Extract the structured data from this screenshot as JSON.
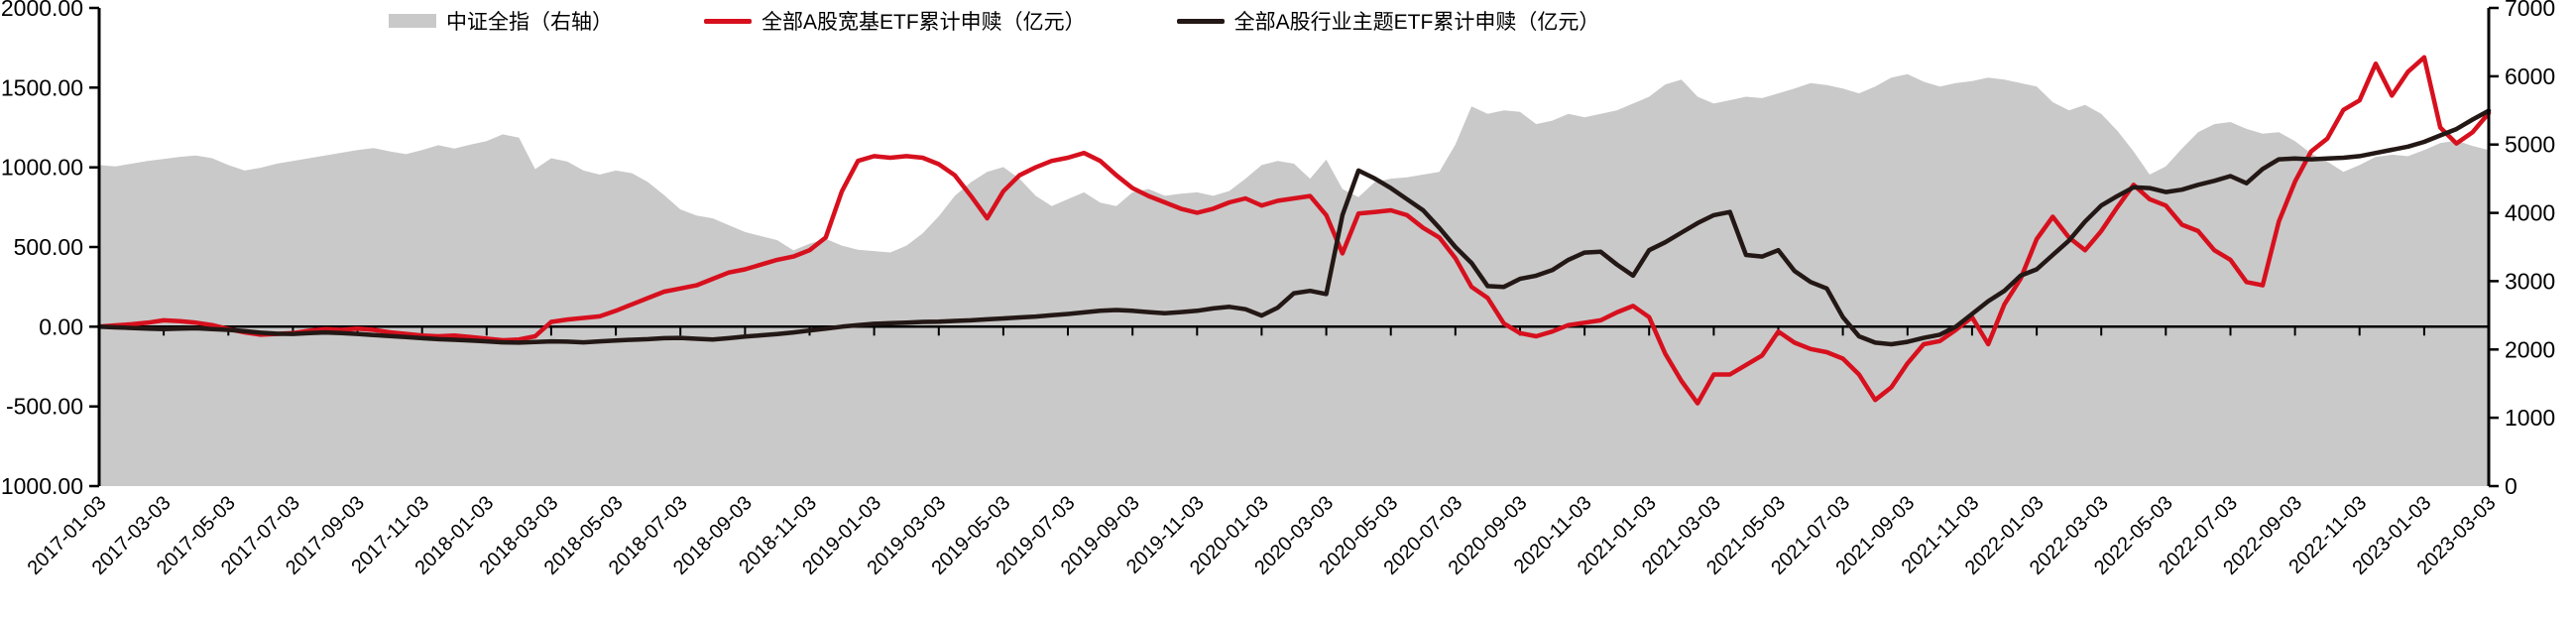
{
  "chart_data": {
    "type": "line+area",
    "title": "",
    "legend_position": "top-center",
    "grid": "off",
    "sampling_note": "semi-monthly points, 2017-01 to 2023-03 (149 points per series)",
    "colors": {
      "area_fill": "#c9c9c9",
      "broad_etf_line": "#d7101e",
      "industry_etf_line": "#231815",
      "axis": "#000000"
    },
    "axes": {
      "left": {
        "min": -1000,
        "max": 2000,
        "step": 500,
        "tick_labels": [
          "2000.00",
          "1500.00",
          "1000.00",
          "500.00",
          "0.00",
          "-500.00",
          "-1000.00"
        ],
        "tick_values": [
          2000,
          1500,
          1000,
          500,
          0,
          -500,
          -1000
        ]
      },
      "right": {
        "min": 0,
        "max": 7000,
        "step": 1000,
        "tick_labels": [
          "7000",
          "6000",
          "5000",
          "4000",
          "3000",
          "2000",
          "1000",
          "0"
        ],
        "tick_values": [
          7000,
          6000,
          5000,
          4000,
          3000,
          2000,
          1000,
          0
        ]
      }
    },
    "x_tick_labels": [
      "2017-01-03",
      "2017-03-03",
      "2017-05-03",
      "2017-07-03",
      "2017-09-03",
      "2017-11-03",
      "2018-01-03",
      "2018-03-03",
      "2018-05-03",
      "2018-07-03",
      "2018-09-03",
      "2018-11-03",
      "2019-01-03",
      "2019-03-03",
      "2019-05-03",
      "2019-07-03",
      "2019-09-03",
      "2019-11-03",
      "2020-01-03",
      "2020-03-03",
      "2020-05-03",
      "2020-07-03",
      "2020-09-03",
      "2020-11-03",
      "2021-01-03",
      "2021-03-03",
      "2021-05-03",
      "2021-07-03",
      "2021-09-03",
      "2021-11-03",
      "2022-01-03",
      "2022-03-03",
      "2022-05-03",
      "2022-07-03",
      "2022-09-03",
      "2022-11-03",
      "2023-01-03",
      "2023-03-03"
    ],
    "series": [
      {
        "name": "中证全指（右轴）",
        "type": "area",
        "axis": "right",
        "values": [
          4700,
          4680,
          4720,
          4760,
          4790,
          4820,
          4840,
          4800,
          4700,
          4620,
          4660,
          4720,
          4760,
          4800,
          4840,
          4880,
          4920,
          4950,
          4900,
          4860,
          4920,
          4990,
          4940,
          5000,
          5050,
          5150,
          5100,
          4640,
          4800,
          4750,
          4620,
          4560,
          4620,
          4580,
          4450,
          4260,
          4050,
          3960,
          3920,
          3820,
          3720,
          3660,
          3600,
          3450,
          3550,
          3620,
          3520,
          3460,
          3440,
          3420,
          3520,
          3700,
          3950,
          4250,
          4450,
          4600,
          4670,
          4500,
          4250,
          4100,
          4200,
          4300,
          4150,
          4100,
          4300,
          4350,
          4250,
          4280,
          4300,
          4250,
          4320,
          4500,
          4700,
          4760,
          4720,
          4500,
          4780,
          4350,
          4230,
          4450,
          4500,
          4520,
          4560,
          4600,
          5000,
          5560,
          5450,
          5500,
          5480,
          5300,
          5350,
          5450,
          5400,
          5450,
          5500,
          5600,
          5700,
          5880,
          5950,
          5700,
          5600,
          5650,
          5700,
          5680,
          5750,
          5820,
          5900,
          5870,
          5820,
          5750,
          5850,
          5980,
          6030,
          5920,
          5850,
          5900,
          5930,
          5980,
          5950,
          5900,
          5850,
          5620,
          5500,
          5580,
          5450,
          5200,
          4900,
          4560,
          4680,
          4940,
          5180,
          5300,
          5330,
          5230,
          5160,
          5180,
          5050,
          4870,
          4750,
          4600,
          4700,
          4820,
          4850,
          4830,
          4920,
          5020,
          5060,
          4980,
          4920
        ]
      },
      {
        "name": "全部A股宽基ETF累计申赎（亿元）",
        "type": "line",
        "axis": "left",
        "values": [
          0,
          8,
          15,
          25,
          40,
          35,
          25,
          10,
          -15,
          -35,
          -50,
          -45,
          -40,
          -25,
          -15,
          -20,
          -12,
          -20,
          -35,
          -45,
          -55,
          -60,
          -55,
          -65,
          -75,
          -85,
          -80,
          -60,
          30,
          45,
          55,
          65,
          100,
          140,
          180,
          220,
          240,
          260,
          300,
          340,
          360,
          390,
          420,
          440,
          480,
          560,
          850,
          1040,
          1070,
          1060,
          1070,
          1060,
          1020,
          950,
          820,
          680,
          850,
          950,
          1000,
          1040,
          1060,
          1090,
          1040,
          950,
          870,
          820,
          780,
          740,
          715,
          740,
          780,
          805,
          760,
          790,
          805,
          820,
          700,
          460,
          710,
          720,
          730,
          700,
          620,
          560,
          430,
          250,
          180,
          20,
          -40,
          -60,
          -30,
          10,
          25,
          40,
          90,
          130,
          60,
          -170,
          -340,
          -480,
          -300,
          -300,
          -240,
          -180,
          -30,
          -100,
          -140,
          -160,
          -200,
          -300,
          -460,
          -380,
          -230,
          -110,
          -90,
          -20,
          60,
          -110,
          140,
          300,
          550,
          690,
          560,
          480,
          600,
          750,
          890,
          800,
          760,
          640,
          600,
          480,
          420,
          280,
          260,
          660,
          910,
          1100,
          1180,
          1360,
          1420,
          1650,
          1450,
          1600,
          1690,
          1250,
          1150,
          1220,
          1340
        ]
      },
      {
        "name": "全部A股行业主题ETF累计申赎（亿元）",
        "type": "line",
        "axis": "left",
        "values": [
          0,
          -4,
          -8,
          -12,
          -15,
          -12,
          -10,
          -15,
          -20,
          -28,
          -38,
          -44,
          -45,
          -40,
          -36,
          -40,
          -45,
          -52,
          -58,
          -65,
          -72,
          -78,
          -82,
          -86,
          -92,
          -98,
          -100,
          -96,
          -92,
          -94,
          -98,
          -92,
          -86,
          -82,
          -78,
          -72,
          -70,
          -76,
          -80,
          -72,
          -62,
          -54,
          -46,
          -36,
          -24,
          -12,
          0,
          10,
          18,
          22,
          26,
          30,
          32,
          36,
          40,
          46,
          52,
          58,
          64,
          72,
          80,
          90,
          100,
          105,
          100,
          92,
          85,
          92,
          100,
          115,
          125,
          110,
          70,
          120,
          210,
          225,
          205,
          700,
          980,
          930,
          870,
          800,
          730,
          620,
          500,
          400,
          255,
          250,
          300,
          320,
          355,
          420,
          465,
          470,
          390,
          320,
          480,
          530,
          590,
          650,
          700,
          720,
          450,
          440,
          480,
          350,
          280,
          240,
          60,
          -60,
          -100,
          -110,
          -95,
          -70,
          -50,
          0,
          80,
          160,
          225,
          320,
          360,
          450,
          540,
          660,
          760,
          820,
          875,
          870,
          845,
          860,
          890,
          915,
          945,
          900,
          990,
          1050,
          1055,
          1050,
          1055,
          1060,
          1070,
          1090,
          1110,
          1130,
          1160,
          1200,
          1240,
          1300,
          1355
        ]
      }
    ]
  },
  "legend": {
    "item1": "中证全指（右轴）",
    "item2": "全部A股宽基ETF累计申赎（亿元）",
    "item3": "全部A股行业主题ETF累计申赎（亿元）"
  }
}
